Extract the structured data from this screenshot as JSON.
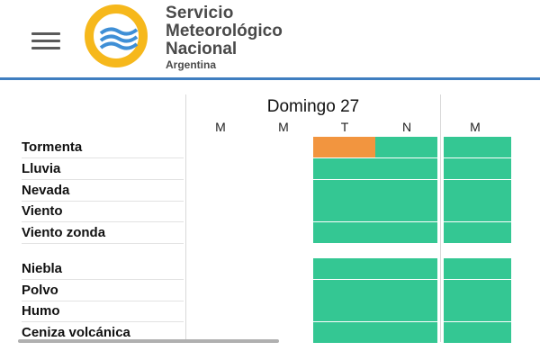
{
  "header": {
    "brand_line1": "Servicio",
    "brand_line2": "Meteorológico",
    "brand_line3": "Nacional",
    "brand_line4": "Argentina",
    "menu_icon": "hamburger-icon",
    "logo_icon": "smn-logo-icon",
    "accent_color": "#3f7ec0"
  },
  "table": {
    "day_title": "Domingo 27",
    "columns": [
      "M",
      "M",
      "T",
      "N",
      "M"
    ],
    "group1": [
      "Tormenta",
      "Lluvia",
      "Nevada",
      "Viento",
      "Viento zonda"
    ],
    "group2": [
      "Niebla",
      "Polvo",
      "Humo",
      "Ceniza volcánica"
    ],
    "colors": {
      "green": "#34c793",
      "orange": "#f2953f",
      "empty": "#ffffff"
    },
    "grid": [
      [
        "empty",
        "empty",
        "orange",
        "green",
        "green"
      ],
      [
        "empty",
        "empty",
        "green",
        "green",
        "green"
      ],
      [
        "empty",
        "empty",
        "green",
        "green",
        "green"
      ],
      [
        "empty",
        "empty",
        "green",
        "green",
        "green"
      ],
      [
        "empty",
        "empty",
        "green",
        "green",
        "green"
      ],
      [
        "empty",
        "empty",
        "green",
        "green",
        "green"
      ],
      [
        "empty",
        "empty",
        "green",
        "green",
        "green"
      ],
      [
        "empty",
        "empty",
        "green",
        "green",
        "green"
      ],
      [
        "empty",
        "empty",
        "green",
        "green",
        "green"
      ]
    ]
  }
}
